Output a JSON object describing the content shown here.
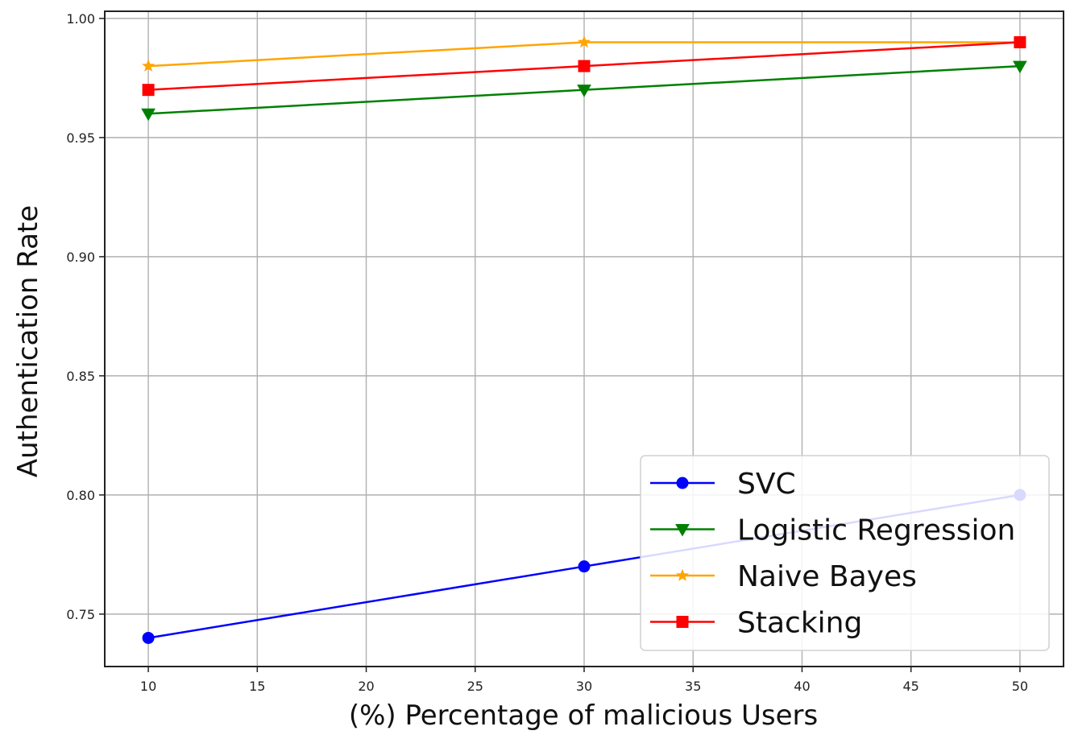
{
  "chart_data": {
    "type": "line",
    "title": "",
    "xlabel": "(%) Percentage of malicious Users",
    "ylabel": "Authentication Rate",
    "xlim": [
      8,
      52
    ],
    "ylim": [
      0.728,
      1.003
    ],
    "xticks": [
      10,
      15,
      20,
      25,
      30,
      35,
      40,
      45,
      50
    ],
    "yticks": [
      0.75,
      0.8,
      0.85,
      0.9,
      0.95,
      1.0
    ],
    "ytick_labels": [
      "0.75",
      "0.80",
      "0.85",
      "0.90",
      "0.95",
      "1.00"
    ],
    "grid": true,
    "legend_position": "bottom-right",
    "x": [
      10,
      30,
      50
    ],
    "series": [
      {
        "name": "SVC",
        "values": [
          0.74,
          0.77,
          0.8
        ],
        "color": "#0000ff",
        "marker": "circle"
      },
      {
        "name": "Logistic Regression",
        "values": [
          0.96,
          0.97,
          0.98
        ],
        "color": "#008000",
        "marker": "triangle-down"
      },
      {
        "name": "Naive Bayes",
        "values": [
          0.98,
          0.99,
          0.99
        ],
        "color": "#ffa500",
        "marker": "star"
      },
      {
        "name": "Stacking",
        "values": [
          0.97,
          0.98,
          0.99
        ],
        "color": "#ff0000",
        "marker": "square"
      }
    ]
  }
}
